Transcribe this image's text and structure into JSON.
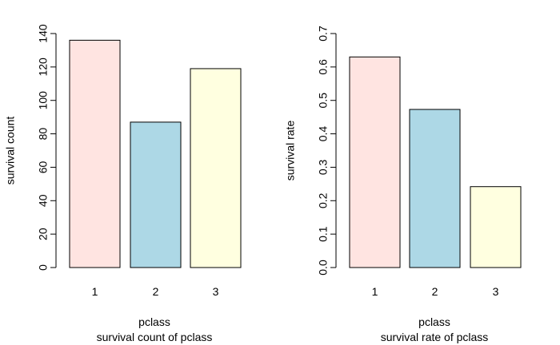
{
  "chart_data": [
    {
      "type": "bar",
      "categories": [
        "1",
        "2",
        "3"
      ],
      "values": [
        136,
        87,
        119
      ],
      "xlabel": "pclass",
      "ylabel": "survival count",
      "caption": "survival count of pclass",
      "ylim": [
        0,
        140
      ],
      "yticks": [
        "0",
        "20",
        "40",
        "60",
        "80",
        "100",
        "120",
        "140"
      ],
      "colors": [
        "#ffe4e1",
        "#add8e6",
        "#ffffe0"
      ],
      "grid": false
    },
    {
      "type": "bar",
      "categories": [
        "1",
        "2",
        "3"
      ],
      "values": [
        0.63,
        0.473,
        0.242
      ],
      "xlabel": "pclass",
      "ylabel": "survival rate",
      "caption": "survival rate of pclass",
      "ylim": [
        0,
        0.7
      ],
      "yticks": [
        "0.0",
        "0.1",
        "0.2",
        "0.3",
        "0.4",
        "0.5",
        "0.6",
        "0.7"
      ],
      "colors": [
        "#ffe4e1",
        "#add8e6",
        "#ffffe0"
      ],
      "grid": false
    }
  ]
}
